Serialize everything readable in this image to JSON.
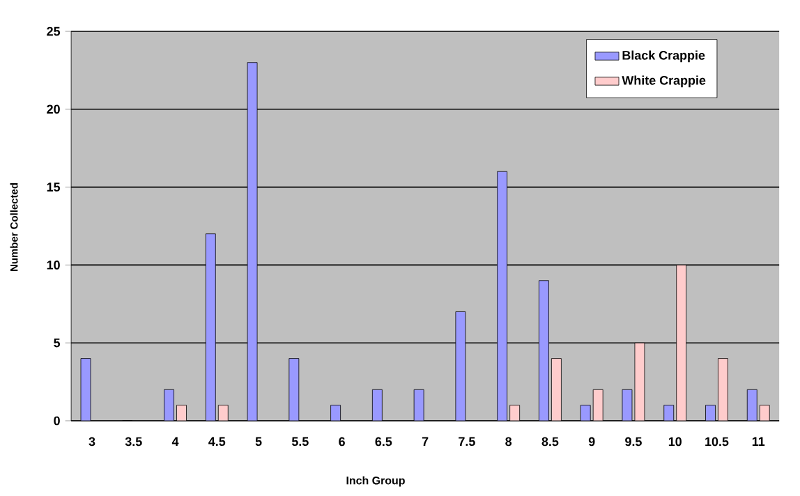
{
  "chart_data": {
    "type": "bar",
    "xlabel": "Inch Group",
    "ylabel": "Number Collected",
    "categories": [
      "3",
      "3.5",
      "4",
      "4.5",
      "5",
      "5.5",
      "6",
      "6.5",
      "7",
      "7.5",
      "8",
      "8.5",
      "9",
      "9.5",
      "10",
      "10.5",
      "11"
    ],
    "series": [
      {
        "name": "Black Crappie",
        "color": "#9999ff",
        "values": [
          4,
          0,
          2,
          12,
          23,
          4,
          1,
          2,
          2,
          7,
          16,
          9,
          1,
          2,
          1,
          1,
          2
        ]
      },
      {
        "name": "White Crappie",
        "color": "#ffcccc",
        "values": [
          null,
          null,
          1,
          1,
          null,
          null,
          null,
          null,
          null,
          null,
          1,
          4,
          2,
          5,
          10,
          4,
          1
        ]
      }
    ],
    "ylim": [
      0,
      25
    ],
    "yticks": [
      0,
      5,
      10,
      15,
      20,
      25
    ],
    "grid": "y",
    "legend": "top right"
  }
}
